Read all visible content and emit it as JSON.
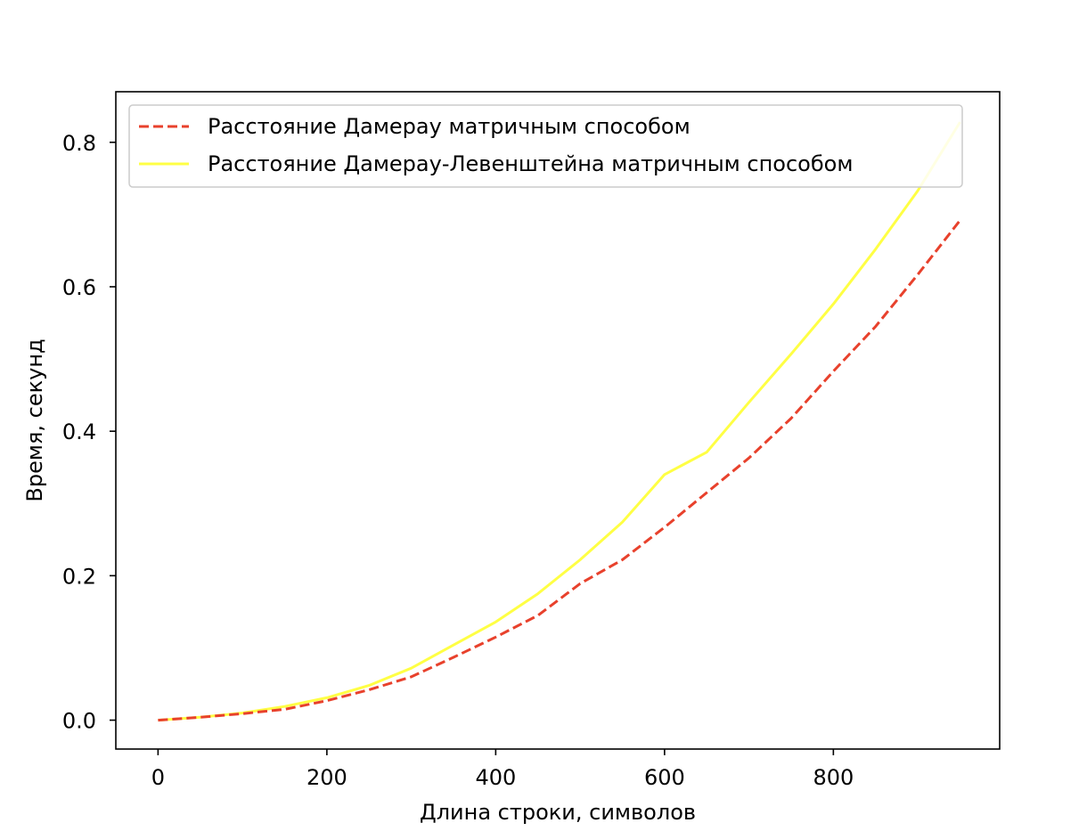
{
  "chart_data": {
    "type": "line",
    "title": "",
    "xlabel": "Длина строки, символов",
    "ylabel": "Время, секунд",
    "xlim": [
      -50,
      997
    ],
    "ylim": [
      -0.04,
      0.87
    ],
    "xticks": [
      0,
      200,
      400,
      600,
      800
    ],
    "yticks": [
      0.0,
      0.2,
      0.4,
      0.6,
      0.8
    ],
    "xtick_labels": [
      "0",
      "200",
      "400",
      "600",
      "800"
    ],
    "ytick_labels": [
      "0.0",
      "0.2",
      "0.4",
      "0.6",
      "0.8"
    ],
    "grid": false,
    "legend_position": "upper-left",
    "x": [
      0,
      50,
      100,
      150,
      200,
      250,
      300,
      350,
      400,
      450,
      500,
      550,
      600,
      650,
      700,
      750,
      800,
      850,
      900,
      950
    ],
    "series": [
      {
        "name": "Расстояние Дамерау матричным способом",
        "color": "#e8412c",
        "dash": true,
        "values": [
          0.0,
          0.004,
          0.009,
          0.015,
          0.027,
          0.042,
          0.06,
          0.087,
          0.115,
          0.145,
          0.189,
          0.222,
          0.267,
          0.315,
          0.363,
          0.418,
          0.483,
          0.545,
          0.617,
          0.692
        ]
      },
      {
        "name": "Расстояние Дамерау-Левенштейна матричным способом",
        "color": "#ffff44",
        "dash": false,
        "values": [
          0.0,
          0.004,
          0.01,
          0.019,
          0.031,
          0.048,
          0.072,
          0.104,
          0.136,
          0.175,
          0.222,
          0.274,
          0.34,
          0.371,
          0.44,
          0.507,
          0.576,
          0.652,
          0.733,
          0.828
        ]
      }
    ]
  }
}
